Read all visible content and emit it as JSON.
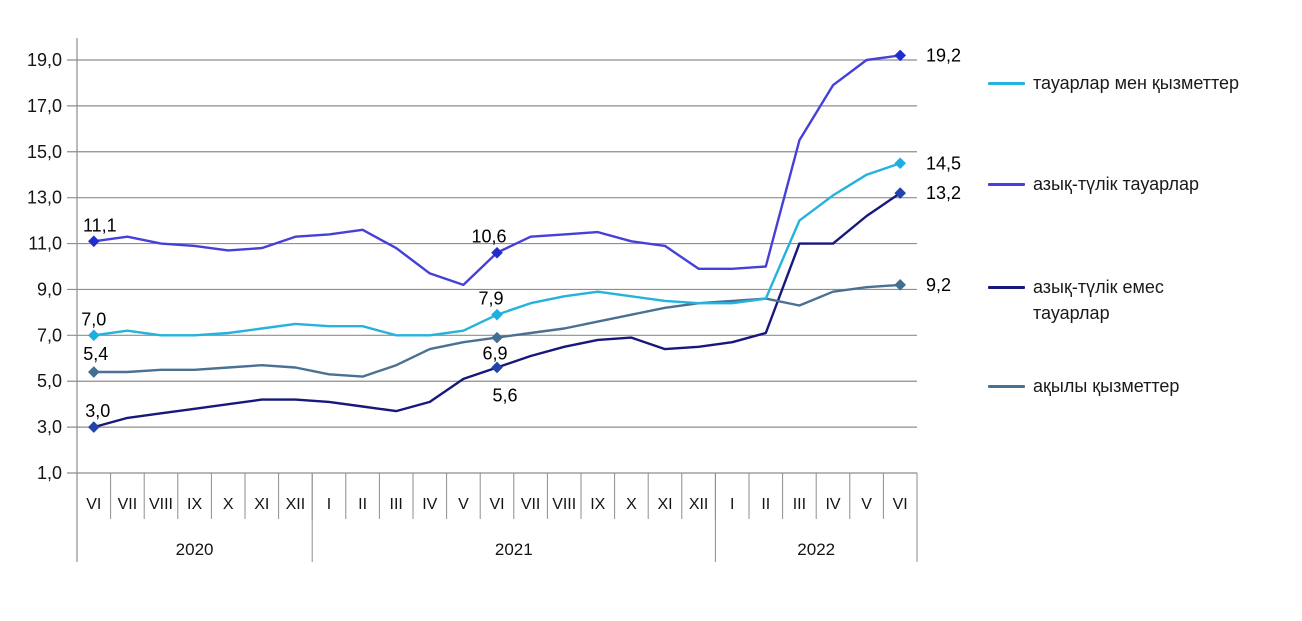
{
  "chart_data": {
    "type": "line",
    "title": "",
    "grid": true,
    "legend_position": "right",
    "y_axis": {
      "min": 1,
      "max": 19,
      "step": 2,
      "tick_labels": [
        "1,0",
        "3,0",
        "5,0",
        "7,0",
        "9,0",
        "11,0",
        "13,0",
        "15,0",
        "17,0",
        "19,0"
      ]
    },
    "x_categories": [
      "VI",
      "VII",
      "VIII",
      "IX",
      "X",
      "XI",
      "XII",
      "I",
      "II",
      "III",
      "IV",
      "V",
      "VI",
      "VII",
      "VIII",
      "IX",
      "X",
      "XI",
      "XII",
      "I",
      "II",
      "III",
      "IV",
      "V",
      "VI"
    ],
    "year_groups": [
      {
        "label": "2020",
        "span": 7
      },
      {
        "label": "2021",
        "span": 12
      },
      {
        "label": "2022",
        "span": 6
      }
    ],
    "markers_at": [
      0,
      12,
      24
    ],
    "series": [
      {
        "name": "тауарлар мен қызметтер",
        "color": "#25B2DC",
        "marker_color": "#1FAEE0",
        "values": [
          7.0,
          7.2,
          7.0,
          7.0,
          7.1,
          7.3,
          7.5,
          7.4,
          7.4,
          7.0,
          7.0,
          7.2,
          7.9,
          8.4,
          8.7,
          8.9,
          8.7,
          8.5,
          8.4,
          8.4,
          8.6,
          12.0,
          13.1,
          14.0,
          14.5
        ],
        "point_labels": [
          {
            "i": 0,
            "text": "7,0",
            "pos": "above",
            "dx": 0,
            "dy": 0
          },
          {
            "i": 12,
            "text": "7,9",
            "pos": "above",
            "dx": -6,
            "dy": 0
          },
          {
            "i": 24,
            "text": "14,5",
            "pos": "right",
            "dx": 0,
            "dy": 0
          }
        ]
      },
      {
        "name": "азық-түлік тауарлар",
        "color": "#4540D8",
        "marker_color": "#202DCC",
        "values": [
          11.1,
          11.3,
          11.0,
          10.9,
          10.7,
          10.8,
          11.3,
          11.4,
          11.6,
          10.8,
          9.7,
          9.2,
          10.6,
          11.3,
          11.4,
          11.5,
          11.1,
          10.9,
          9.9,
          9.9,
          10.0,
          15.5,
          17.9,
          19.0,
          19.2
        ],
        "point_labels": [
          {
            "i": 0,
            "text": "11,1",
            "pos": "above",
            "dx": 6,
            "dy": 0
          },
          {
            "i": 12,
            "text": "10,6",
            "pos": "above",
            "dx": -8,
            "dy": 0
          },
          {
            "i": 24,
            "text": "19,2",
            "pos": "right",
            "dx": 0,
            "dy": 0
          }
        ]
      },
      {
        "name": "азық-түлік емес тауарлар",
        "name_lines": [
          "азық-түлік емес",
          "тауарлар"
        ],
        "color": "#17177E",
        "marker_color": "#2244AA",
        "values": [
          3.0,
          3.4,
          3.6,
          3.8,
          4.0,
          4.2,
          4.2,
          4.1,
          3.9,
          3.7,
          4.1,
          5.1,
          5.6,
          6.1,
          6.5,
          6.8,
          6.9,
          6.4,
          6.5,
          6.7,
          7.1,
          11.0,
          11.0,
          12.2,
          13.2
        ],
        "point_labels": [
          {
            "i": 0,
            "text": "3,0",
            "pos": "above",
            "dx": 4,
            "dy": 0
          },
          {
            "i": 12,
            "text": "5,6",
            "pos": "below",
            "dx": 8,
            "dy": 8
          },
          {
            "i": 24,
            "text": "13,2",
            "pos": "right",
            "dx": 0,
            "dy": 0
          }
        ]
      },
      {
        "name": "ақылы қызметтер",
        "color": "#4A7093",
        "marker_color": "#44708F",
        "values": [
          5.4,
          5.4,
          5.5,
          5.5,
          5.6,
          5.7,
          5.6,
          5.3,
          5.2,
          5.7,
          6.4,
          6.7,
          6.9,
          7.1,
          7.3,
          7.6,
          7.9,
          8.2,
          8.4,
          8.5,
          8.6,
          8.3,
          8.9,
          9.1,
          9.2
        ],
        "point_labels": [
          {
            "i": 0,
            "text": "5,4",
            "pos": "above",
            "dx": 2,
            "dy": -2
          },
          {
            "i": 12,
            "text": "6,9",
            "pos": "below",
            "dx": -2,
            "dy": -4
          },
          {
            "i": 24,
            "text": "9,2",
            "pos": "right",
            "dx": 0,
            "dy": 0
          }
        ]
      }
    ]
  }
}
